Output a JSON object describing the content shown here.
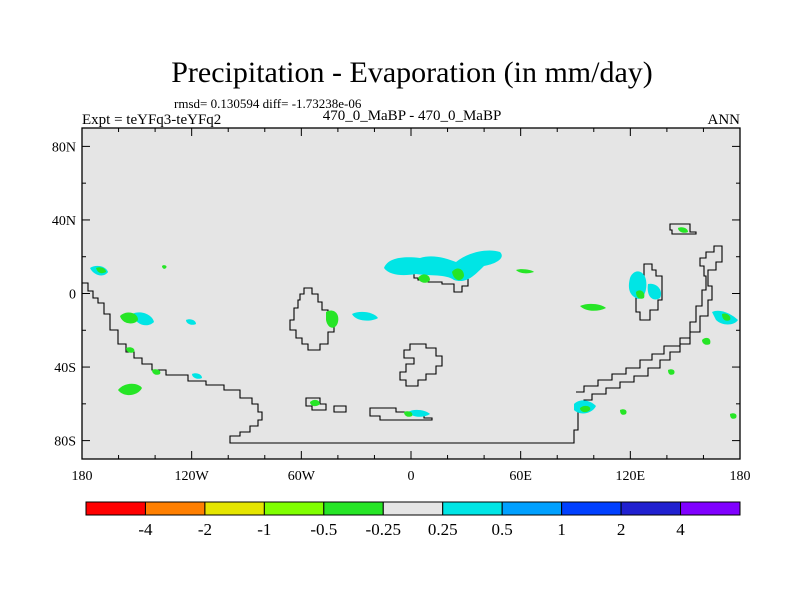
{
  "chart_data": {
    "type": "heatmap",
    "title": "Precipitation - Evaporation (in mm/day)",
    "stats": "rmsd= 0.130594  diff= -1.73238e-06",
    "left_label": "Expt = teYFq3-teYFq2",
    "center_label": "470_0_MaBP - 470_0_MaBP",
    "right_label": "ANN",
    "x_ticks": [
      "180",
      "120W",
      "60W",
      "0",
      "60E",
      "120E",
      "180"
    ],
    "y_ticks": [
      "80N",
      "40N",
      "0",
      "40S",
      "80S"
    ],
    "colorbar": {
      "colors": [
        "#ff0000",
        "#ff7f00",
        "#e5e500",
        "#80ff00",
        "#26e526",
        "#e5e5e5",
        "#00e5e5",
        "#00a0ff",
        "#0040ff",
        "#2020d0",
        "#8000ff"
      ],
      "labels": [
        "-4",
        "-2",
        "-1",
        "-0.5",
        "-0.25",
        "0.25",
        "0.5",
        "1",
        "2",
        "4"
      ]
    },
    "background_color": "#e5e5e5"
  }
}
